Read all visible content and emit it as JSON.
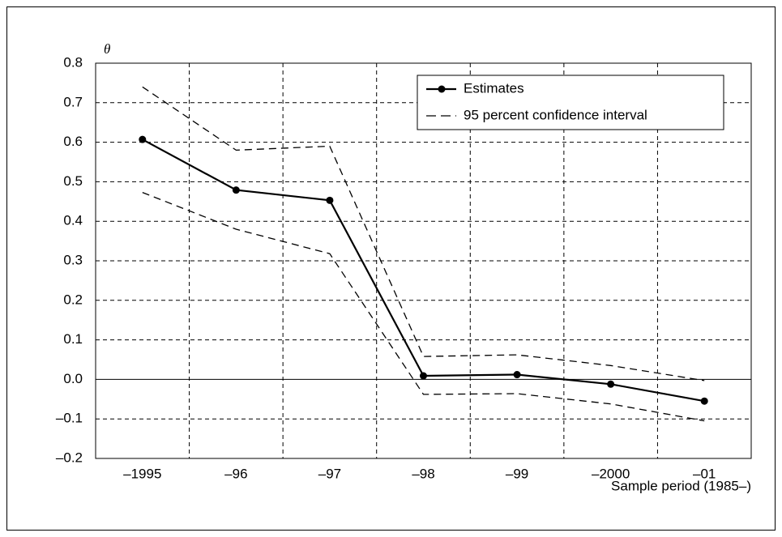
{
  "chart_data": {
    "type": "line",
    "y_label": "θ",
    "x_label": "Sample period (1985–)",
    "categories": [
      "–1995",
      "–96",
      "–97",
      "–98",
      "–99",
      "–2000",
      "–01"
    ],
    "series": [
      {
        "name": "Estimates",
        "color": "#000000",
        "style": "solid",
        "markers": true,
        "values": [
          0.607,
          0.479,
          0.453,
          0.009,
          0.012,
          -0.012,
          -0.055
        ]
      },
      {
        "name": "95 percent confidence interval",
        "color": "#000000",
        "style": "dashed",
        "markers": false,
        "upper": [
          0.74,
          0.58,
          0.59,
          0.058,
          0.062,
          0.035,
          -0.003
        ],
        "lower": [
          0.473,
          0.38,
          0.318,
          -0.038,
          -0.036,
          -0.062,
          -0.105
        ]
      }
    ],
    "ylim": [
      -0.2,
      0.8
    ],
    "yticks": [
      {
        "value": -0.2,
        "label": "–0.2"
      },
      {
        "value": -0.1,
        "label": "–0.1"
      },
      {
        "value": 0,
        "label": "0.0"
      },
      0.1,
      0.2,
      0.3,
      0.4,
      0.5,
      0.6,
      0.7,
      0.8
    ],
    "grid": true,
    "zero_line": true,
    "legend": "upper right"
  }
}
